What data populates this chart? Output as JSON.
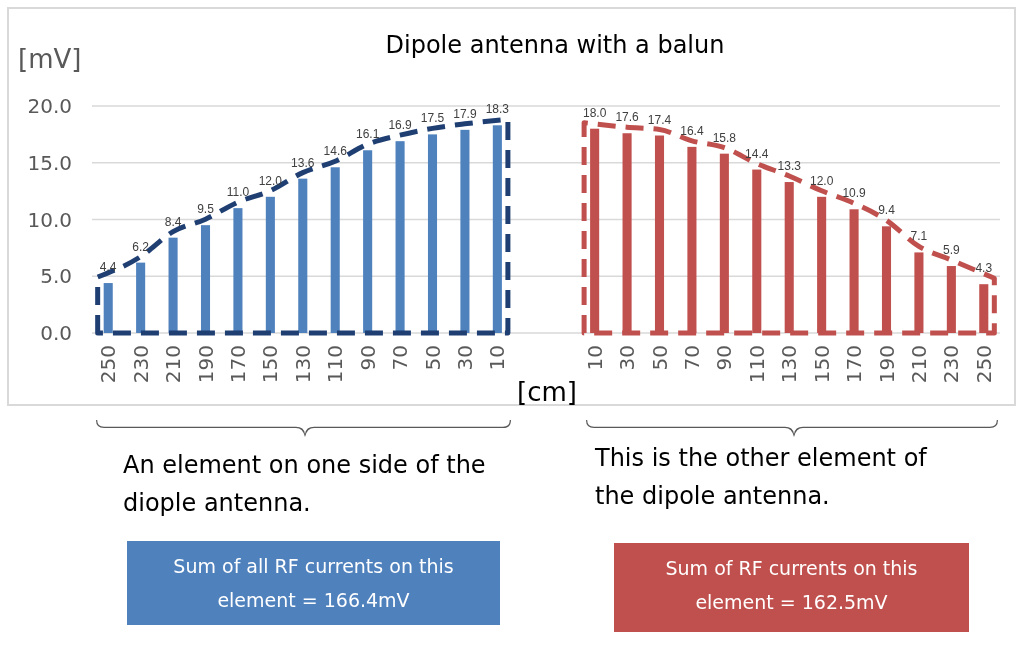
{
  "chart_data": {
    "type": "bar",
    "title": "Dipole antenna with a balun",
    "xlabel": "[cm]",
    "ylabel": "[mV]",
    "categories": [
      "250",
      "230",
      "210",
      "190",
      "170",
      "150",
      "130",
      "110",
      "90",
      "70",
      "50",
      "30",
      "10",
      null,
      null,
      "10",
      "30",
      "50",
      "70",
      "90",
      "110",
      "130",
      "150",
      "170",
      "190",
      "210",
      "230",
      "250"
    ],
    "series": [
      {
        "color": "#4f81bd",
        "values": [
          4.4,
          6.2,
          8.4,
          9.5,
          11.0,
          12.0,
          13.6,
          14.6,
          16.1,
          16.9,
          17.5,
          17.9,
          18.3,
          null,
          null,
          null,
          null,
          null,
          null,
          null,
          null,
          null,
          null,
          null,
          null,
          null,
          null,
          null
        ],
        "value_labels": [
          "4.4",
          "6.2",
          "8.4",
          "9.5",
          "11.0",
          "12.0",
          "13.6",
          "14.6",
          "16.1",
          "16.9",
          "17.5",
          "17.9",
          "18.3",
          null,
          null,
          null,
          null,
          null,
          null,
          null,
          null,
          null,
          null,
          null,
          null,
          null,
          null,
          null
        ]
      },
      {
        "color": "#c0504d",
        "values": [
          null,
          null,
          null,
          null,
          null,
          null,
          null,
          null,
          null,
          null,
          null,
          null,
          null,
          null,
          null,
          18.0,
          17.6,
          17.4,
          16.4,
          15.8,
          14.4,
          13.3,
          12.0,
          10.9,
          9.4,
          7.1,
          5.9,
          4.3
        ],
        "value_labels": [
          null,
          null,
          null,
          null,
          null,
          null,
          null,
          null,
          null,
          null,
          null,
          null,
          null,
          null,
          null,
          "18.0",
          "17.6",
          "17.4",
          "16.4",
          "15.8",
          "14.4",
          "13.3",
          "12.0",
          "10.9",
          "9.4",
          "7.1",
          "5.9",
          "4.3"
        ]
      }
    ],
    "ylim": [
      0,
      20
    ],
    "yticks": [
      {
        "value": 0,
        "label": "0.0"
      },
      {
        "value": 5,
        "label": "5.0"
      },
      {
        "value": 10,
        "label": "10.0"
      },
      {
        "value": 15,
        "label": "15.0"
      },
      {
        "value": 20,
        "label": "20.0"
      }
    ],
    "grid": "y",
    "annotations": [
      "An element on one side of the diople antenna.",
      "This is the other element of the dipole antenna.",
      "Sum of all RF currents on this element = 166.4mV",
      "Sum of RF currents on this element = 162.5mV"
    ]
  }
}
